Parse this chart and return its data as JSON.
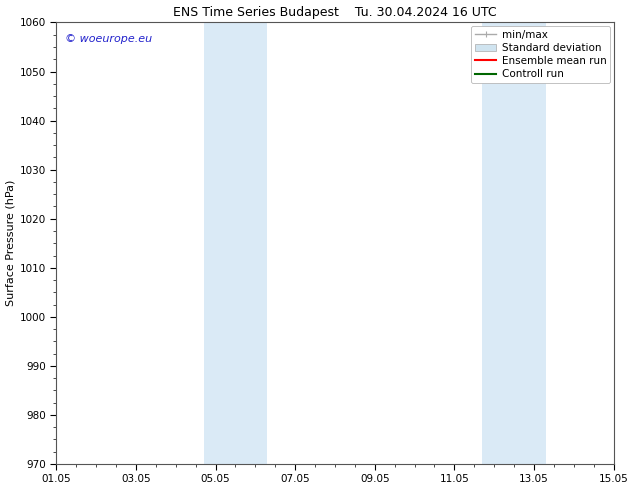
{
  "title_left": "ENS Time Series Budapest",
  "title_right": "Tu. 30.04.2024 16 UTC",
  "ylabel": "Surface Pressure (hPa)",
  "ylim": [
    970,
    1060
  ],
  "yticks": [
    970,
    980,
    990,
    1000,
    1010,
    1020,
    1030,
    1040,
    1050,
    1060
  ],
  "xlim_start": 0,
  "xlim_end": 14,
  "xtick_labels": [
    "01.05",
    "03.05",
    "05.05",
    "07.05",
    "09.05",
    "11.05",
    "13.05",
    "15.05"
  ],
  "xtick_positions": [
    0,
    2,
    4,
    6,
    8,
    10,
    12,
    14
  ],
  "shaded_bands": [
    {
      "xmin": 3.7,
      "xmax": 5.3
    },
    {
      "xmin": 10.7,
      "xmax": 12.3
    }
  ],
  "shaded_color": "#daeaf6",
  "watermark_text": "© woeurope.eu",
  "watermark_color": "#2222cc",
  "legend_entries": [
    {
      "label": "min/max",
      "color": "#aaaaaa",
      "linestyle": "-",
      "linewidth": 1.0,
      "type": "line_with_ticks"
    },
    {
      "label": "Standard deviation",
      "color": "#d0e4f0",
      "linestyle": "-",
      "linewidth": 8,
      "type": "patch"
    },
    {
      "label": "Ensemble mean run",
      "color": "#ff0000",
      "linestyle": "-",
      "linewidth": 1.5,
      "type": "line"
    },
    {
      "label": "Controll run",
      "color": "#006600",
      "linestyle": "-",
      "linewidth": 1.5,
      "type": "line"
    }
  ],
  "background_color": "#ffffff",
  "tick_font_size": 7.5,
  "ylabel_font_size": 8,
  "title_font_size": 9,
  "watermark_font_size": 8,
  "legend_font_size": 7.5
}
